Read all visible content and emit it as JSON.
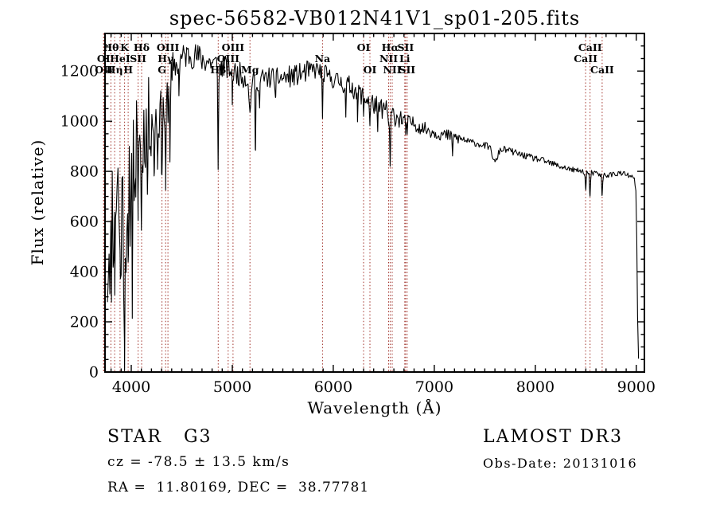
{
  "annotations": {
    "star_class": "STAR   G3",
    "cz": "cz = -78.5 ± 13.5 km/s",
    "radec": "RA =  11.80169, DEC =  38.77781",
    "survey": "LAMOST DR3",
    "obs_date": "Obs-Date: 20131016"
  },
  "chart_data": {
    "type": "line",
    "title": "spec-56582-VB012N41V1_sp01-205.fits",
    "xlabel": "Wavelength (Å)",
    "ylabel": "Flux (relative)",
    "xlim": [
      3740,
      9080
    ],
    "ylim": [
      0,
      1350
    ],
    "xticks": [
      4000,
      5000,
      6000,
      7000,
      8000,
      9000
    ],
    "x_minor_step": 100,
    "yticks": [
      0,
      200,
      400,
      600,
      800,
      1000,
      1200
    ],
    "y_minor_step": 50,
    "grid": false,
    "legend": null,
    "colors": {
      "spectrum": "#000000",
      "line_marker": "#a03028",
      "frame": "#000000",
      "text": "#000000"
    },
    "spectral_lines": [
      {
        "label": "Hθ",
        "row": 1,
        "wavelength": 3798
      },
      {
        "label": "K",
        "row": 1,
        "wavelength": 3934
      },
      {
        "label": "Hδ",
        "row": 1,
        "wavelength": 4102
      },
      {
        "label": "OIII",
        "row": 1,
        "wavelength": 4363
      },
      {
        "label": "OIII",
        "row": 1,
        "wavelength": 5007
      },
      {
        "label": "OI",
        "row": 1,
        "wavelength": 6300
      },
      {
        "label": "Hα",
        "row": 1,
        "wavelength": 6563
      },
      {
        "label": "SII",
        "row": 1,
        "wavelength": 6716
      },
      {
        "label": "CaII",
        "row": 1,
        "wavelength": 8542
      },
      {
        "label": "OI",
        "row": 2,
        "wavelength": 3726
      },
      {
        "label": "HeI",
        "row": 2,
        "wavelength": 3889
      },
      {
        "label": "SII",
        "row": 2,
        "wavelength": 4068
      },
      {
        "label": "Hγ",
        "row": 2,
        "wavelength": 4340
      },
      {
        "label": "OIII",
        "row": 2,
        "wavelength": 4959
      },
      {
        "label": "Na",
        "row": 2,
        "wavelength": 5893
      },
      {
        "label": "NII",
        "row": 2,
        "wavelength": 6548
      },
      {
        "label": "Li",
        "row": 2,
        "wavelength": 6708
      },
      {
        "label": "CaII",
        "row": 2,
        "wavelength": 8498
      },
      {
        "label": "OII",
        "row": 3,
        "wavelength": 3729
      },
      {
        "label": "Hη",
        "row": 3,
        "wavelength": 3835
      },
      {
        "label": "H",
        "row": 3,
        "wavelength": 3969
      },
      {
        "label": "G",
        "row": 3,
        "wavelength": 4304
      },
      {
        "label": "Hβ",
        "row": 3,
        "wavelength": 4861
      },
      {
        "label": "Mg",
        "row": 3,
        "wavelength": 5175
      },
      {
        "label": "OI",
        "row": 3,
        "wavelength": 6363
      },
      {
        "label": "NII",
        "row": 3,
        "wavelength": 6583
      },
      {
        "label": "SII",
        "row": 3,
        "wavelength": 6731
      },
      {
        "label": "CaII",
        "row": 3,
        "wavelength": 8662
      }
    ],
    "spectrum": {
      "sample_step": 8,
      "noise_seed": 11,
      "anchors": [
        [
          3764,
          450
        ],
        [
          3778,
          560
        ],
        [
          3792,
          620
        ],
        [
          3806,
          640
        ],
        [
          3820,
          680
        ],
        [
          3836,
          720
        ],
        [
          3852,
          740
        ],
        [
          3868,
          720
        ],
        [
          3884,
          690
        ],
        [
          3900,
          640
        ],
        [
          3916,
          600
        ],
        [
          3932,
          610
        ],
        [
          3948,
          630
        ],
        [
          3964,
          650
        ],
        [
          3980,
          700
        ],
        [
          4000,
          770
        ],
        [
          4025,
          840
        ],
        [
          4050,
          880
        ],
        [
          4075,
          910
        ],
        [
          4100,
          940
        ],
        [
          4130,
          960
        ],
        [
          4160,
          1000
        ],
        [
          4200,
          1020
        ],
        [
          4240,
          1040
        ],
        [
          4280,
          1025
        ],
        [
          4320,
          1045
        ],
        [
          4360,
          1085
        ],
        [
          4400,
          1160
        ],
        [
          4440,
          1220
        ],
        [
          4480,
          1245
        ],
        [
          4530,
          1262
        ],
        [
          4580,
          1266
        ],
        [
          4630,
          1260
        ],
        [
          4680,
          1252
        ],
        [
          4730,
          1242
        ],
        [
          4780,
          1236
        ],
        [
          4830,
          1230
        ],
        [
          4880,
          1222
        ],
        [
          4930,
          1216
        ],
        [
          4980,
          1206
        ],
        [
          5030,
          1192
        ],
        [
          5090,
          1186
        ],
        [
          5150,
          1168
        ],
        [
          5210,
          1158
        ],
        [
          5270,
          1166
        ],
        [
          5340,
          1172
        ],
        [
          5410,
          1176
        ],
        [
          5480,
          1172
        ],
        [
          5550,
          1176
        ],
        [
          5620,
          1182
        ],
        [
          5690,
          1190
        ],
        [
          5760,
          1200
        ],
        [
          5830,
          1206
        ],
        [
          5890,
          1200
        ],
        [
          5950,
          1176
        ],
        [
          6010,
          1166
        ],
        [
          6070,
          1156
        ],
        [
          6130,
          1146
        ],
        [
          6190,
          1136
        ],
        [
          6250,
          1116
        ],
        [
          6310,
          1096
        ],
        [
          6370,
          1076
        ],
        [
          6430,
          1062
        ],
        [
          6490,
          1050
        ],
        [
          6550,
          1036
        ],
        [
          6610,
          1022
        ],
        [
          6670,
          1012
        ],
        [
          6730,
          1002
        ],
        [
          6790,
          992
        ],
        [
          6850,
          976
        ],
        [
          6910,
          970
        ],
        [
          6970,
          960
        ],
        [
          7030,
          952
        ],
        [
          7090,
          946
        ],
        [
          7150,
          940
        ],
        [
          7210,
          934
        ],
        [
          7270,
          928
        ],
        [
          7330,
          920
        ],
        [
          7390,
          914
        ],
        [
          7450,
          908
        ],
        [
          7510,
          902
        ],
        [
          7570,
          895
        ],
        [
          7630,
          886
        ],
        [
          7690,
          888
        ],
        [
          7750,
          882
        ],
        [
          7810,
          873
        ],
        [
          7870,
          865
        ],
        [
          7930,
          858
        ],
        [
          7990,
          852
        ],
        [
          8050,
          846
        ],
        [
          8110,
          838
        ],
        [
          8170,
          830
        ],
        [
          8230,
          822
        ],
        [
          8290,
          815
        ],
        [
          8350,
          808
        ],
        [
          8410,
          803
        ],
        [
          8470,
          800
        ],
        [
          8530,
          796
        ],
        [
          8590,
          791
        ],
        [
          8650,
          787
        ],
        [
          8710,
          785
        ],
        [
          8770,
          789
        ],
        [
          8830,
          793
        ],
        [
          8890,
          788
        ],
        [
          8930,
          782
        ],
        [
          8960,
          775
        ],
        [
          8985,
          765
        ],
        [
          9000,
          700
        ],
        [
          9008,
          350
        ],
        [
          9015,
          120
        ],
        [
          9022,
          60
        ]
      ],
      "absorption_features": [
        [
          3798,
          260,
          4
        ],
        [
          3835,
          270,
          4
        ],
        [
          3889,
          300,
          4
        ],
        [
          3934,
          420,
          5
        ],
        [
          3969,
          380,
          5
        ],
        [
          4010,
          350,
          3
        ],
        [
          4045,
          300,
          3
        ],
        [
          4068,
          180,
          4
        ],
        [
          4102,
          330,
          4
        ],
        [
          4160,
          320,
          3
        ],
        [
          4226,
          300,
          3
        ],
        [
          4260,
          200,
          3
        ],
        [
          4304,
          200,
          5
        ],
        [
          4340,
          350,
          4
        ],
        [
          4383,
          220,
          3
        ],
        [
          4472,
          120,
          3
        ],
        [
          4861,
          390,
          4
        ],
        [
          5000,
          100,
          3
        ],
        [
          5175,
          140,
          7
        ],
        [
          5230,
          290,
          3.5
        ],
        [
          5270,
          120,
          3
        ],
        [
          5430,
          120,
          3
        ],
        [
          5893,
          180,
          4
        ],
        [
          6125,
          130,
          3
        ],
        [
          6240,
          120,
          3
        ],
        [
          6300,
          70,
          3
        ],
        [
          6363,
          90,
          3
        ],
        [
          6440,
          140,
          3
        ],
        [
          6548,
          60,
          3
        ],
        [
          6563,
          220,
          4
        ],
        [
          6716,
          50,
          3
        ],
        [
          6731,
          50,
          3
        ],
        [
          7180,
          60,
          4
        ],
        [
          7600,
          55,
          22
        ],
        [
          8498,
          70,
          4
        ],
        [
          8542,
          100,
          4
        ],
        [
          8662,
          90,
          4
        ]
      ],
      "noise_regions": [
        [
          3760,
          3920,
          330
        ],
        [
          3920,
          4060,
          250
        ],
        [
          4060,
          4210,
          170
        ],
        [
          4210,
          4420,
          105
        ],
        [
          4420,
          4750,
          55
        ],
        [
          4750,
          5150,
          48
        ],
        [
          5150,
          5750,
          44
        ],
        [
          5750,
          6100,
          38
        ],
        [
          6100,
          6700,
          42
        ],
        [
          6700,
          7300,
          26
        ],
        [
          7300,
          8300,
          13
        ],
        [
          8300,
          9030,
          11
        ]
      ]
    }
  }
}
